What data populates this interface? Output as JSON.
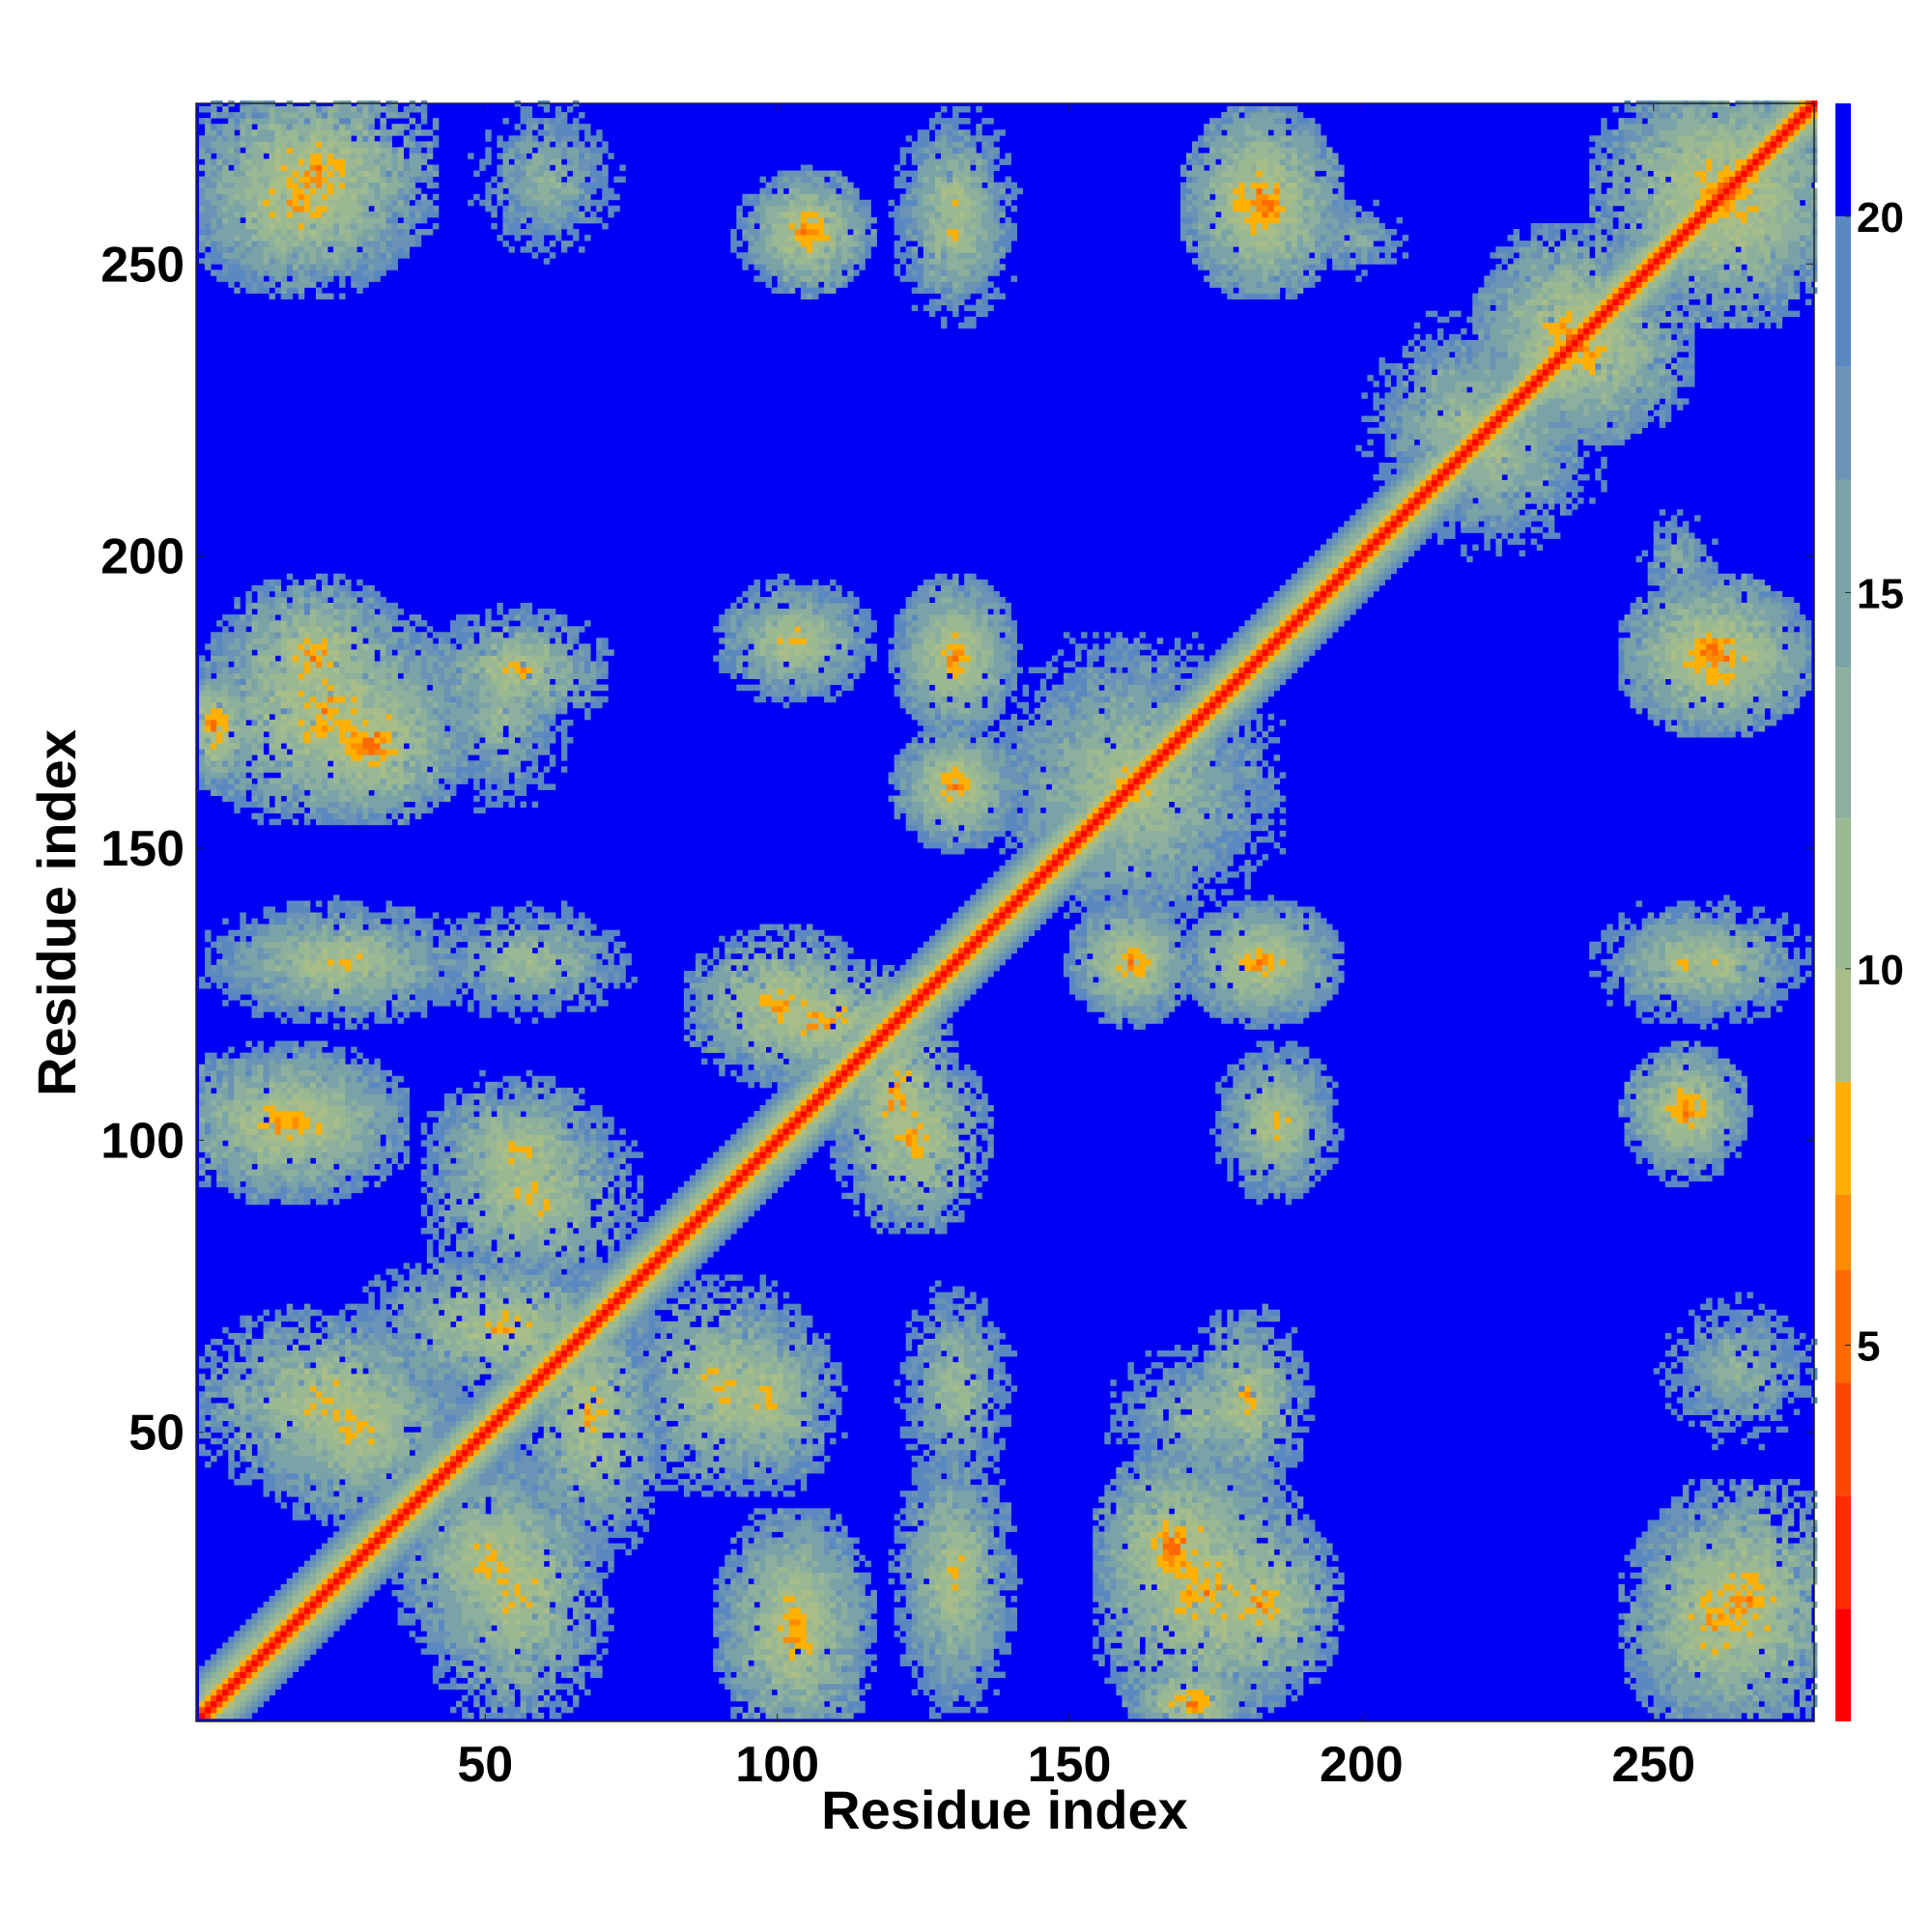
{
  "chart_data": {
    "type": "heatmap",
    "title": "",
    "xlabel": "Residue index",
    "ylabel": "Residue index",
    "xlim": [
      1,
      277
    ],
    "ylim": [
      1,
      277
    ],
    "xticks": [
      50,
      100,
      150,
      200,
      250
    ],
    "yticks": [
      50,
      100,
      150,
      200,
      250
    ],
    "colorbar": {
      "ticks": [
        5,
        10,
        15,
        20
      ],
      "range": [
        0,
        21.5
      ],
      "levels": [
        {
          "max": 1.5,
          "color": "#ff0000"
        },
        {
          "max": 3.0,
          "color": "#ff2a00"
        },
        {
          "max": 4.5,
          "color": "#ff4500"
        },
        {
          "max": 6.0,
          "color": "#ff6a00"
        },
        {
          "max": 7.0,
          "color": "#ff8c00"
        },
        {
          "max": 8.5,
          "color": "#ffb000"
        },
        {
          "max": 10.0,
          "color": "#a8bd88"
        },
        {
          "max": 12.0,
          "color": "#9ab993"
        },
        {
          "max": 14.0,
          "color": "#8daf9d"
        },
        {
          "max": 16.5,
          "color": "#7aa3a8"
        },
        {
          "max": 18.0,
          "color": "#6a93b5"
        },
        {
          "max": 20.0,
          "color": "#5a88c0"
        },
        {
          "max": 999,
          "color": "#0000f5"
        }
      ]
    },
    "description_values": {
      "background_distance": 21,
      "diagonal_distance": 3.8
    },
    "contact_regions": [
      {
        "x": [
          5,
          35
        ],
        "y": [
          253,
          277
        ],
        "min": 6
      },
      {
        "x": [
          50,
          70
        ],
        "y": [
          253,
          275
        ],
        "min": 11
      },
      {
        "x": [
          100,
          110
        ],
        "y": [
          250,
          260
        ],
        "min": 5
      },
      {
        "x": [
          125,
          135
        ],
        "y": [
          245,
          265
        ],
        "min": 8
      },
      {
        "x": [
          175,
          190
        ],
        "y": [
          250,
          270
        ],
        "min": 5
      },
      {
        "x": [
          192,
          205
        ],
        "y": [
          250,
          258
        ],
        "min": 12
      },
      {
        "x": [
          5,
          40
        ],
        "y": [
          160,
          185
        ],
        "min": 6
      },
      {
        "x": [
          45,
          60
        ],
        "y": [
          160,
          185
        ],
        "min": 10
      },
      {
        "x": [
          95,
          110
        ],
        "y": [
          180,
          190
        ],
        "min": 7
      },
      {
        "x": [
          125,
          135
        ],
        "y": [
          175,
          190
        ],
        "min": 6
      },
      {
        "x": [
          125,
          135
        ],
        "y": [
          155,
          165
        ],
        "min": 6
      },
      {
        "x": [
          5,
          40
        ],
        "y": [
          125,
          135
        ],
        "min": 9
      },
      {
        "x": [
          45,
          70
        ],
        "y": [
          125,
          135
        ],
        "min": 9
      },
      {
        "x": [
          90,
          110
        ],
        "y": [
          115,
          130
        ],
        "min": 6
      },
      {
        "x": [
          115,
          125
        ],
        "y": [
          95,
          120
        ],
        "min": 6
      },
      {
        "x": [
          155,
          165
        ],
        "y": [
          125,
          135
        ],
        "min": 6
      },
      {
        "x": [
          175,
          190
        ],
        "y": [
          125,
          135
        ],
        "min": 6
      },
      {
        "x": [
          1,
          30
        ],
        "y": [
          95,
          110
        ],
        "min": 6
      },
      {
        "x": [
          45,
          65
        ],
        "y": [
          90,
          105
        ],
        "min": 7
      },
      {
        "x": [
          5,
          40
        ],
        "y": [
          45,
          65
        ],
        "min": 7
      },
      {
        "x": [
          35,
          70
        ],
        "y": [
          60,
          75
        ],
        "min": 7
      },
      {
        "x": [
          80,
          100
        ],
        "y": [
          45,
          70
        ],
        "min": 7
      },
      {
        "x": [
          40,
          60
        ],
        "y": [
          15,
          40
        ],
        "min": 7
      },
      {
        "x": [
          95,
          110
        ],
        "y": [
          5,
          30
        ],
        "min": 7
      },
      {
        "x": [
          125,
          135
        ],
        "y": [
          10,
          40
        ],
        "min": 7
      },
      {
        "x": [
          160,
          175
        ],
        "y": [
          20,
          40
        ],
        "min": 5
      },
      {
        "x": [
          175,
          190
        ],
        "y": [
          10,
          30
        ],
        "min": 6
      },
      {
        "x": [
          250,
          270
        ],
        "y": [
          5,
          30
        ],
        "min": 6
      },
      {
        "x": [
          250,
          275
        ],
        "y": [
          245,
          277
        ],
        "min": 6
      },
      {
        "x": [
          205,
          230
        ],
        "y": [
          210,
          235
        ],
        "min": 9
      },
      {
        "x": [
          225,
          245
        ],
        "y": [
          225,
          250
        ],
        "min": 6
      },
      {
        "x": [
          145,
          175
        ],
        "y": [
          140,
          180
        ],
        "min": 8
      },
      {
        "x": [
          250,
          270
        ],
        "y": [
          175,
          190
        ],
        "min": 6
      },
      {
        "x": [
          250,
          270
        ],
        "y": [
          125,
          135
        ],
        "min": 8
      },
      {
        "x": [
          180,
          190
        ],
        "y": [
          95,
          110
        ],
        "min": 8
      },
      {
        "x": [
          250,
          260
        ],
        "y": [
          98,
          110
        ],
        "min": 7
      },
      {
        "x": [
          175,
          185
        ],
        "y": [
          45,
          65
        ],
        "min": 7
      },
      {
        "x": [
          165,
          175
        ],
        "y": [
          1,
          5
        ],
        "min": 5
      }
    ]
  }
}
